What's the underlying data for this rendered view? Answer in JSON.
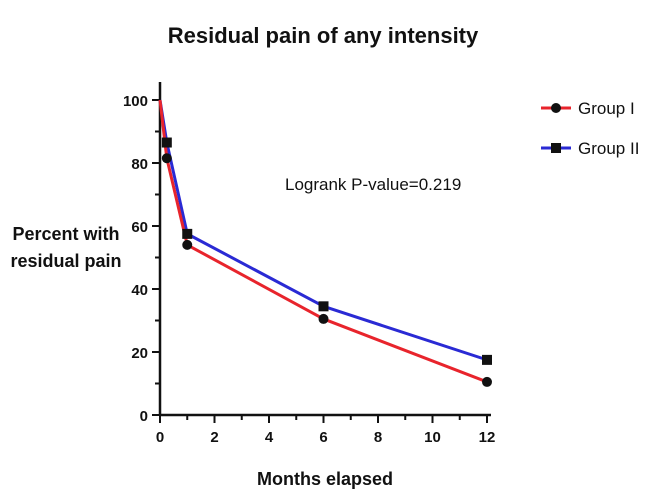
{
  "chart_data": {
    "type": "line",
    "title": "Residual pain of any intensity",
    "xlabel": "Months elapsed",
    "ylabel_lines": [
      "Percent with",
      "residual pain"
    ],
    "xlim": [
      0,
      12
    ],
    "ylim": [
      0,
      100
    ],
    "x_ticks": [
      0,
      2,
      4,
      6,
      8,
      10,
      12
    ],
    "y_ticks": [
      0,
      20,
      40,
      60,
      80,
      100
    ],
    "grid": false,
    "legend_position": "top-right",
    "annotation": "Logrank P-value=0.219",
    "series": [
      {
        "name": "Group I",
        "color": "#e8242c",
        "marker": "circle",
        "x": [
          0,
          0.25,
          1,
          6,
          12
        ],
        "y": [
          100,
          81.5,
          54,
          30.5,
          10.5
        ]
      },
      {
        "name": "Group II",
        "color": "#2a2ad4",
        "marker": "square",
        "x": [
          0,
          0.25,
          1,
          6,
          12
        ],
        "y": [
          100,
          86.5,
          57.5,
          34.5,
          17.5
        ]
      }
    ]
  }
}
